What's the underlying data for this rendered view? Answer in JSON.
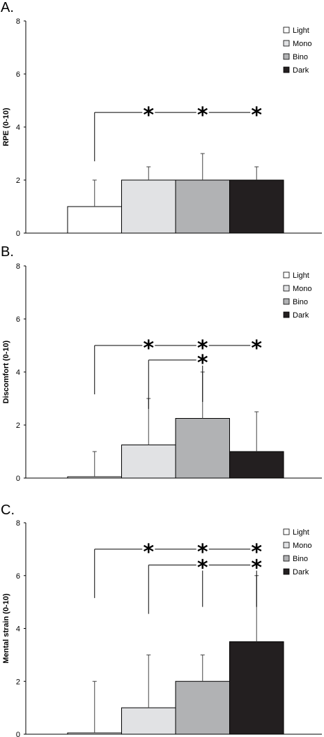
{
  "chart_data": [
    {
      "type": "bar",
      "panel": "A.",
      "ylabel": "RPE (0-10)",
      "ylim": [
        0,
        8
      ],
      "yticks": [
        "0",
        "2",
        "4",
        "6",
        "8"
      ],
      "categories": [
        "Light",
        "Mono",
        "Bino",
        "Dark"
      ],
      "values": [
        1,
        2,
        2,
        2
      ],
      "errors": [
        1,
        0.5,
        1,
        0.5
      ],
      "significance": [
        {
          "from": "Light",
          "to": [
            "Mono",
            "Bino",
            "Dark"
          ],
          "y": 4.55,
          "marker": "*"
        }
      ]
    },
    {
      "type": "bar",
      "panel": "B.",
      "ylabel": "Discomfort (0-10)",
      "ylim": [
        0,
        8
      ],
      "yticks": [
        "0",
        "2",
        "4",
        "6",
        "8"
      ],
      "categories": [
        "Light",
        "Mono",
        "Bino",
        "Dark"
      ],
      "values": [
        0.05,
        1.25,
        2.25,
        1.0
      ],
      "errors": [
        0.95,
        1.75,
        1.75,
        1.5
      ],
      "significance": [
        {
          "from": "Light",
          "to": [
            "Mono",
            "Bino",
            "Dark"
          ],
          "y": 5.0,
          "marker": "*"
        },
        {
          "from": "Mono",
          "to": [
            "Bino"
          ],
          "y": 4.45,
          "marker": "*"
        }
      ]
    },
    {
      "type": "bar",
      "panel": "C.",
      "ylabel": "Mental strain (0-10)",
      "ylim": [
        0,
        8
      ],
      "yticks": [
        "0",
        "2",
        "4",
        "6",
        "8"
      ],
      "categories": [
        "Light",
        "Mono",
        "Bino",
        "Dark"
      ],
      "values": [
        0.05,
        1.0,
        2.0,
        3.5
      ],
      "errors": [
        1.95,
        2.0,
        1.0,
        2.5
      ],
      "significance": [
        {
          "from": "Light",
          "to": [
            "Mono",
            "Bino",
            "Dark"
          ],
          "y": 7.0,
          "marker": "*"
        },
        {
          "from": "Mono",
          "to": [
            "Bino",
            "Dark"
          ],
          "y": 6.4,
          "marker": "*"
        }
      ]
    }
  ],
  "legend": [
    {
      "label": "Light",
      "color": "#ffffff"
    },
    {
      "label": "Mono",
      "color": "#e1e2e4"
    },
    {
      "label": "Bino",
      "color": "#b1b2b4"
    },
    {
      "label": "Dark",
      "color": "#231f20"
    }
  ]
}
